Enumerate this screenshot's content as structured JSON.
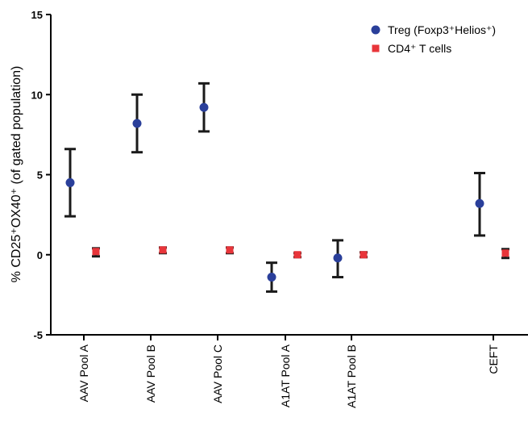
{
  "chart_data": {
    "type": "scatter",
    "title": "",
    "xlabel": "",
    "ylabel": "% CD25⁺OX40⁺ (of gated population)",
    "ylim": [
      -5,
      15
    ],
    "yticks": [
      "-5",
      "0",
      "5",
      "10",
      "15"
    ],
    "ytick_values": [
      -5,
      0,
      5,
      10,
      15
    ],
    "categories": [
      "AAV Pool A",
      "AAV Pool B",
      "AAV Pool C",
      "A1AT Pool A",
      "A1AT Pool B",
      "CEFT"
    ],
    "grid": false,
    "legend_position": "top-right",
    "series": [
      {
        "name": "Treg (Foxp3⁺Helios⁺)",
        "marker": "circle",
        "color": "#2a3f9a",
        "values": [
          4.5,
          8.2,
          9.2,
          -1.4,
          -0.2,
          3.2
        ],
        "err_low": [
          2.4,
          6.4,
          7.7,
          -2.3,
          -1.4,
          1.2
        ],
        "err_high": [
          6.6,
          10.0,
          10.7,
          -0.5,
          0.9,
          5.1
        ]
      },
      {
        "name": "CD4⁺ T cells",
        "marker": "square",
        "color": "#e8353a",
        "values": [
          0.2,
          0.3,
          0.3,
          0.0,
          0.0,
          0.1
        ],
        "err_low": [
          -0.1,
          0.1,
          0.1,
          -0.15,
          -0.15,
          -0.2
        ],
        "err_high": [
          0.4,
          0.45,
          0.45,
          0.1,
          0.15,
          0.35
        ]
      }
    ]
  }
}
